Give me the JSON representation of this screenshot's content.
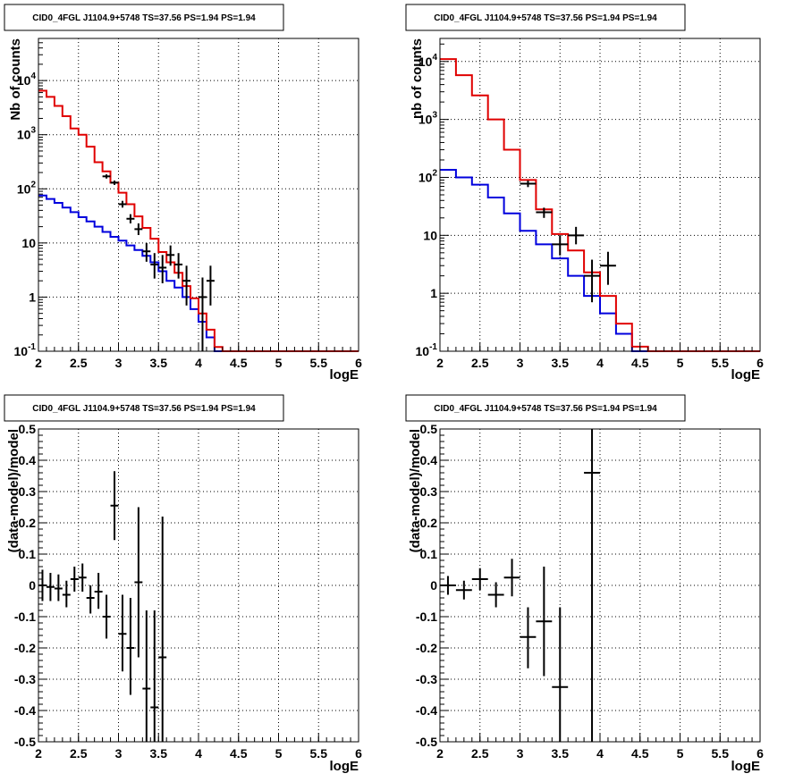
{
  "canvas": {
    "background": "#ffffff",
    "frame_color": "#000000",
    "grid_color": "#000000"
  },
  "colors": {
    "data": "#000000",
    "model_total": "#e00000",
    "model_background": "#0000dd"
  },
  "chart_data": [
    {
      "id": "top-left",
      "type": "line",
      "title": "CID0_4FGL J1104.9+5748 TS=37.56 PS=1.94 PS=1.94",
      "xlabel": "logE",
      "ylabel": "Nb of counts",
      "xlim": [
        2,
        6
      ],
      "ylim": [
        0.1,
        60000
      ],
      "ylog": true,
      "grid": true,
      "x_ticks": [
        "2",
        "2.5",
        "3",
        "3.5",
        "4",
        "4.5",
        "5",
        "5.5",
        "6"
      ],
      "y_ticks": [
        "10^-1",
        "1",
        "10",
        "10^2",
        "10^3",
        "10^4"
      ],
      "bin_width": 0.1,
      "series": [
        {
          "role": "model_total",
          "bin_edges": [
            2.0,
            2.1,
            2.2,
            2.3,
            2.4,
            2.5,
            2.6,
            2.7,
            2.8,
            2.9,
            3.0,
            3.1,
            3.2,
            3.3,
            3.4,
            3.5,
            3.6,
            3.7,
            3.8,
            3.9,
            4.0,
            4.1,
            4.2,
            4.3,
            4.4,
            4.5,
            4.6,
            4.7,
            4.8,
            4.9,
            5.0,
            5.1,
            5.2,
            5.3,
            5.4,
            5.5,
            5.6,
            5.7,
            5.8,
            5.9,
            6.0
          ],
          "values": [
            6500,
            5000,
            3400,
            2200,
            1300,
            1000,
            600,
            310,
            210,
            130,
            85,
            52,
            31,
            19,
            12,
            6.8,
            4.4,
            2.8,
            1.6,
            0.95,
            0.5,
            0.25,
            0.12,
            0.1,
            0.1,
            0.1,
            0.1,
            0.1,
            0.1,
            0.1,
            0.1,
            0.1,
            0.1,
            0.1,
            0.1,
            0.1,
            0.1,
            0.1,
            0.1,
            0.1
          ]
        },
        {
          "role": "model_background",
          "bin_edges": [
            2.0,
            2.1,
            2.2,
            2.3,
            2.4,
            2.5,
            2.6,
            2.7,
            2.8,
            2.9,
            3.0,
            3.1,
            3.2,
            3.3,
            3.4,
            3.5,
            3.6,
            3.7,
            3.8,
            3.9,
            4.0,
            4.1,
            4.2,
            4.3,
            4.4,
            4.5,
            4.6,
            4.7,
            4.8,
            4.9,
            5.0,
            5.1,
            5.2,
            5.3,
            5.4,
            5.5,
            5.6,
            5.7,
            5.8,
            5.9,
            6.0
          ],
          "values": [
            75,
            65,
            55,
            45,
            37,
            30,
            25,
            20,
            16,
            13,
            11,
            9,
            7.4,
            5.8,
            4.4,
            3.0,
            2.0,
            1.5,
            1.0,
            0.6,
            0.35,
            0.18,
            0.1,
            0.1,
            0.1,
            0.1,
            0.1,
            0.1,
            0.1,
            0.1,
            0.1,
            0.1,
            0.1,
            0.1,
            0.1,
            0.1,
            0.1,
            0.1,
            0.1,
            0.1
          ]
        },
        {
          "role": "data",
          "points": [
            {
              "x": 2.85,
              "y": 170,
              "lo": 155,
              "hi": 185
            },
            {
              "x": 2.95,
              "y": 130,
              "lo": 118,
              "hi": 142
            },
            {
              "x": 3.05,
              "y": 52,
              "lo": 45,
              "hi": 60
            },
            {
              "x": 3.15,
              "y": 28,
              "lo": 23,
              "hi": 34
            },
            {
              "x": 3.25,
              "y": 18,
              "lo": 14,
              "hi": 23
            },
            {
              "x": 3.35,
              "y": 7,
              "lo": 4.5,
              "hi": 10
            },
            {
              "x": 3.45,
              "y": 4,
              "lo": 2.2,
              "hi": 6.5
            },
            {
              "x": 3.55,
              "y": 3.5,
              "lo": 1.8,
              "hi": 6
            },
            {
              "x": 3.65,
              "y": 6,
              "lo": 3.8,
              "hi": 9
            },
            {
              "x": 3.75,
              "y": 4,
              "lo": 2.2,
              "hi": 6.5
            },
            {
              "x": 3.85,
              "y": 2,
              "lo": 0.7,
              "hi": 3.8
            },
            {
              "x": 4.05,
              "y": 1,
              "lo": 0.1,
              "hi": 2.3
            },
            {
              "x": 4.15,
              "y": 2,
              "lo": 0.7,
              "hi": 3.8
            }
          ]
        }
      ]
    },
    {
      "id": "top-right",
      "type": "line",
      "title": "CID0_4FGL J1104.9+5748 TS=37.56 PS=1.94 PS=1.94",
      "xlabel": "logE",
      "ylabel": "nb of counts",
      "xlim": [
        2,
        6
      ],
      "ylim": [
        0.1,
        25000
      ],
      "ylog": true,
      "grid": true,
      "x_ticks": [
        "2",
        "2.5",
        "3",
        "3.5",
        "4",
        "4.5",
        "5",
        "5.5",
        "6"
      ],
      "y_ticks": [
        "10^-1",
        "1",
        "10",
        "10^2",
        "10^3",
        "10^4"
      ],
      "bin_width": 0.2,
      "series": [
        {
          "role": "model_total",
          "bin_edges": [
            2.0,
            2.2,
            2.4,
            2.6,
            2.8,
            3.0,
            3.2,
            3.4,
            3.6,
            3.8,
            4.0,
            4.2,
            4.4,
            4.6,
            4.8,
            5.0,
            5.2,
            5.4,
            5.6,
            5.8,
            6.0
          ],
          "values": [
            11000,
            5800,
            2600,
            1000,
            300,
            90,
            28,
            10.5,
            5.5,
            2.3,
            0.9,
            0.3,
            0.12,
            0.1,
            0.1,
            0.1,
            0.1,
            0.1,
            0.1,
            0.1
          ]
        },
        {
          "role": "model_background",
          "bin_edges": [
            2.0,
            2.2,
            2.4,
            2.6,
            2.8,
            3.0,
            3.2,
            3.4,
            3.6,
            3.8,
            4.0,
            4.2,
            4.4,
            4.6,
            4.8,
            5.0,
            5.2,
            5.4,
            5.6,
            5.8,
            6.0
          ],
          "values": [
            135,
            100,
            75,
            45,
            24,
            12,
            7,
            4,
            2,
            0.9,
            0.45,
            0.2,
            0.1,
            0.1,
            0.1,
            0.1,
            0.1,
            0.1,
            0.1,
            0.1
          ]
        },
        {
          "role": "data",
          "points": [
            {
              "x": 3.1,
              "y": 78,
              "lo": 68,
              "hi": 88
            },
            {
              "x": 3.3,
              "y": 25,
              "lo": 20,
              "hi": 30
            },
            {
              "x": 3.5,
              "y": 7,
              "lo": 4.5,
              "hi": 10
            },
            {
              "x": 3.7,
              "y": 10,
              "lo": 7,
              "hi": 14
            },
            {
              "x": 3.9,
              "y": 2,
              "lo": 0.7,
              "hi": 3.8
            },
            {
              "x": 4.1,
              "y": 3,
              "lo": 1.4,
              "hi": 5.2
            }
          ]
        }
      ]
    },
    {
      "id": "bottom-left",
      "type": "scatter",
      "title": "CID0_4FGL J1104.9+5748 TS=37.56 PS=1.94 PS=1.94",
      "xlabel": "logE",
      "ylabel": "(data-model)/model",
      "xlim": [
        2,
        6
      ],
      "ylim": [
        -0.5,
        0.5
      ],
      "ylog": false,
      "grid": true,
      "x_ticks": [
        "2",
        "2.5",
        "3",
        "3.5",
        "4",
        "4.5",
        "5",
        "5.5",
        "6"
      ],
      "y_ticks": [
        "-0.5",
        "-0.4",
        "-0.3",
        "-0.2",
        "-0.1",
        "0",
        "0.1",
        "0.2",
        "0.3",
        "0.4",
        "0.5"
      ],
      "bin_width": 0.1,
      "series": [
        {
          "role": "data",
          "points": [
            {
              "x": 2.05,
              "y": 0.0,
              "lo": -0.05,
              "hi": 0.05
            },
            {
              "x": 2.15,
              "y": -0.005,
              "lo": -0.05,
              "hi": 0.04
            },
            {
              "x": 2.25,
              "y": -0.01,
              "lo": -0.05,
              "hi": 0.035
            },
            {
              "x": 2.35,
              "y": -0.03,
              "lo": -0.07,
              "hi": 0.015
            },
            {
              "x": 2.45,
              "y": 0.02,
              "lo": -0.02,
              "hi": 0.06
            },
            {
              "x": 2.55,
              "y": 0.025,
              "lo": -0.02,
              "hi": 0.07
            },
            {
              "x": 2.65,
              "y": -0.04,
              "lo": -0.09,
              "hi": 0.0
            },
            {
              "x": 2.75,
              "y": -0.02,
              "lo": -0.075,
              "hi": 0.04
            },
            {
              "x": 2.85,
              "y": -0.1,
              "lo": -0.17,
              "hi": -0.03
            },
            {
              "x": 2.95,
              "y": 0.255,
              "lo": 0.145,
              "hi": 0.365
            },
            {
              "x": 3.05,
              "y": -0.155,
              "lo": -0.275,
              "hi": -0.03
            },
            {
              "x": 3.15,
              "y": -0.2,
              "lo": -0.35,
              "hi": -0.04
            },
            {
              "x": 3.25,
              "y": 0.01,
              "lo": -0.23,
              "hi": 0.25
            },
            {
              "x": 3.35,
              "y": -0.33,
              "lo": -0.5,
              "hi": -0.08
            },
            {
              "x": 3.45,
              "y": -0.39,
              "lo": -0.5,
              "hi": -0.08
            },
            {
              "x": 3.55,
              "y": -0.23,
              "lo": -0.5,
              "hi": 0.22
            }
          ]
        }
      ]
    },
    {
      "id": "bottom-right",
      "type": "scatter",
      "title": "CID0_4FGL J1104.9+5748 TS=37.56 PS=1.94 PS=1.94",
      "xlabel": "logE",
      "ylabel": "(data-model)/model",
      "xlim": [
        2,
        6
      ],
      "ylim": [
        -0.5,
        0.5
      ],
      "ylog": false,
      "grid": true,
      "x_ticks": [
        "2",
        "2.5",
        "3",
        "3.5",
        "4",
        "4.5",
        "5",
        "5.5",
        "6"
      ],
      "y_ticks": [
        "-0.5",
        "-0.4",
        "-0.3",
        "-0.2",
        "-0.1",
        "0",
        "0.1",
        "0.2",
        "0.3",
        "0.4",
        "0.5"
      ],
      "bin_width": 0.2,
      "series": [
        {
          "role": "data",
          "points": [
            {
              "x": 2.1,
              "y": 0.0,
              "lo": -0.03,
              "hi": 0.03
            },
            {
              "x": 2.3,
              "y": -0.015,
              "lo": -0.045,
              "hi": 0.015
            },
            {
              "x": 2.5,
              "y": 0.02,
              "lo": -0.015,
              "hi": 0.055
            },
            {
              "x": 2.7,
              "y": -0.03,
              "lo": -0.07,
              "hi": 0.01
            },
            {
              "x": 2.9,
              "y": 0.025,
              "lo": -0.035,
              "hi": 0.085
            },
            {
              "x": 3.1,
              "y": -0.165,
              "lo": -0.265,
              "hi": -0.07
            },
            {
              "x": 3.3,
              "y": -0.115,
              "lo": -0.29,
              "hi": 0.06
            },
            {
              "x": 3.5,
              "y": -0.325,
              "lo": -0.5,
              "hi": -0.07
            },
            {
              "x": 3.9,
              "y": 0.36,
              "lo": -0.5,
              "hi": 0.5
            }
          ]
        }
      ]
    }
  ]
}
